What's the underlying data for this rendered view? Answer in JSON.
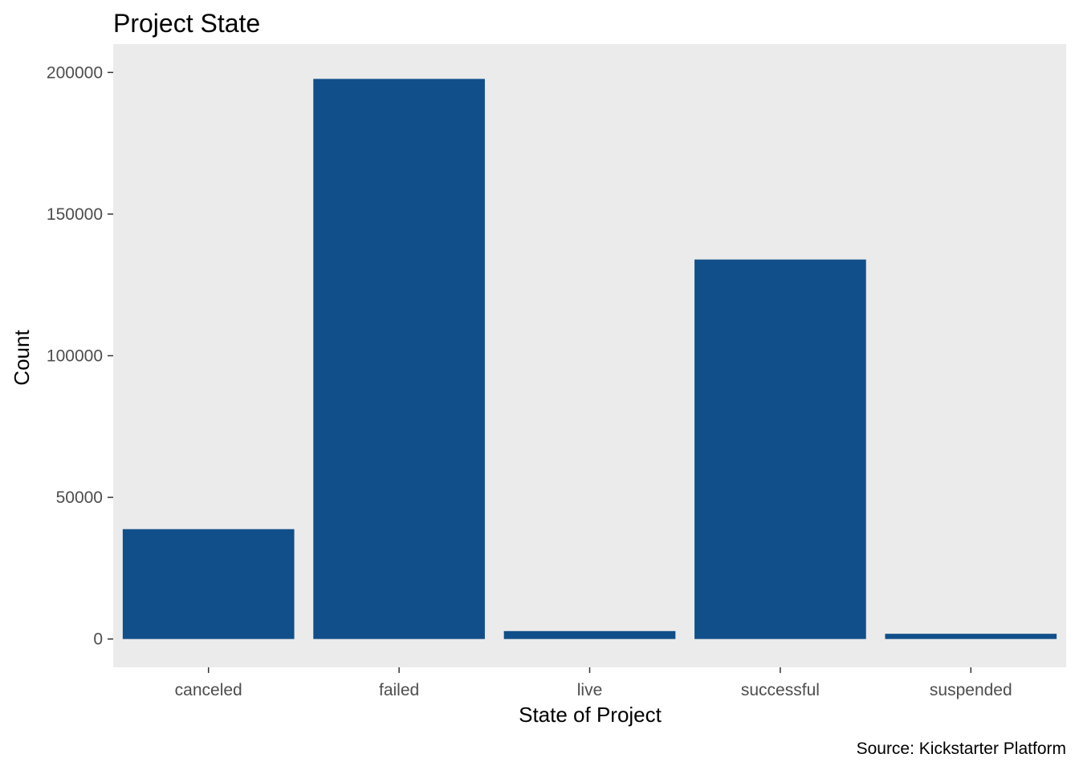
{
  "chart_data": {
    "type": "bar",
    "title": "Project State",
    "xlabel": "State of Project",
    "ylabel": "Count",
    "caption": "Source: Kickstarter Platform",
    "categories": [
      "canceled",
      "failed",
      "live",
      "successful",
      "suspended"
    ],
    "values": [
      38779,
      197719,
      2799,
      133956,
      1846
    ],
    "ylim": [
      -10000,
      210000
    ],
    "yticks": [
      0,
      50000,
      100000,
      150000,
      200000
    ],
    "ytick_labels": [
      "0",
      "50000",
      "100000",
      "150000",
      "200000"
    ],
    "grid": false,
    "legend": "none",
    "colors": {
      "bar": "#114f8a",
      "panel": "#ebebeb",
      "tick": "#333333"
    }
  }
}
